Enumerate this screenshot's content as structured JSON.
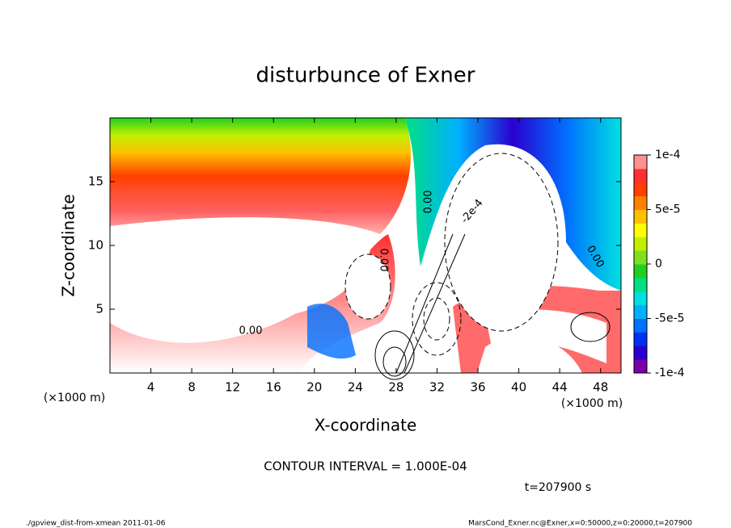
{
  "chart_data": {
    "type": "contour",
    "title": "disturbunce of Exner",
    "xlabel": "X-coordinate",
    "ylabel": "Z-coordinate",
    "x_unit": "(×1000 m)",
    "y_unit": "(×1000 m)",
    "xlim": [
      0,
      50
    ],
    "ylim": [
      0,
      20
    ],
    "xticks": [
      4,
      8,
      12,
      16,
      20,
      24,
      28,
      32,
      36,
      40,
      44,
      48
    ],
    "yticks": [
      5,
      10,
      15
    ],
    "clim": [
      -0.0001,
      0.0001
    ],
    "cticks": [
      {
        "value": 0.0001,
        "label": "1e-4"
      },
      {
        "value": 5e-05,
        "label": "5e-5"
      },
      0,
      {
        "value": -5e-05,
        "label": "-5e-5"
      },
      {
        "value": -0.0001,
        "label": "-1e-4"
      }
    ],
    "colormap": [
      "#7a00a8",
      "#2a00d0",
      "#0030f0",
      "#0070ff",
      "#00b0ff",
      "#00e0e0",
      "#00e080",
      "#20d020",
      "#80e020",
      "#c0f000",
      "#ffff00",
      "#ffc000",
      "#ff8000",
      "#ff4000",
      "#ff3030",
      "#ff9090"
    ],
    "contour_labels": [
      "0.00",
      "0.00",
      "0.00",
      "-2e-4",
      "0.00"
    ],
    "note": "CONTOUR INTERVAL = 1.000E-04",
    "time": "t=207900 s",
    "footer_left": "./gpview_dist-from-xmean  2011-01-06",
    "footer_right": "MarsCond_Exner.nc@Exner,x=0:50000,z=0:20000,t=207900"
  }
}
